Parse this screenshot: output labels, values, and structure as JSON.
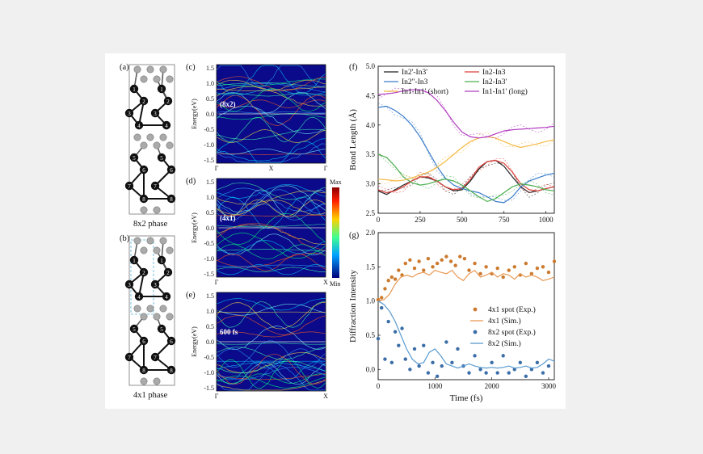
{
  "panels": {
    "a": {
      "letter": "(a)",
      "caption": "8x2 phase"
    },
    "b": {
      "letter": "(b)",
      "caption": "4x1 phase"
    },
    "c": {
      "letter": "(c)",
      "inlay": "(8x2)"
    },
    "d": {
      "letter": "(d)",
      "inlay": "(4x1)"
    },
    "e": {
      "letter": "(e)",
      "inlay": "600 fs"
    },
    "f": {
      "letter": "(f)"
    },
    "g": {
      "letter": "(g)"
    }
  },
  "atoms": {
    "a": [
      "1",
      "1",
      "2",
      "2",
      "3",
      "3",
      "4",
      "4",
      "5",
      "5",
      "6",
      "6",
      "7",
      "7",
      "8",
      "8"
    ],
    "b": [
      "1",
      "1",
      "2",
      "2",
      "3",
      "3",
      "4",
      "4",
      "5",
      "5",
      "6",
      "6",
      "7",
      "7",
      "8",
      "8"
    ]
  },
  "colorbar": {
    "max_label": "Max",
    "min_label": "Min"
  },
  "band_axes": {
    "ylabel": "Energy(eV)",
    "yticks": [
      "1.5",
      "1.0",
      "0.5",
      "0.0",
      "-0.5",
      "-1.0",
      "-1.5"
    ],
    "kpoints_c": [
      "Γ",
      "X",
      "Γ"
    ],
    "kpoints_d": [
      "Γ",
      "X"
    ],
    "kpoints_e": [
      "Γ",
      "X"
    ]
  },
  "chart_data": [
    {
      "type": "line",
      "panel": "(f)",
      "xlabel": "",
      "ylabel": "Bond Length (Å)",
      "xlim": [
        0,
        1050
      ],
      "ylim": [
        2.5,
        5.0
      ],
      "xticks": [
        0,
        250,
        500,
        750,
        1000
      ],
      "yticks": [
        2.5,
        3.0,
        3.5,
        4.0,
        4.5,
        5.0
      ],
      "legend": "top",
      "x": [
        0,
        50,
        100,
        150,
        200,
        250,
        300,
        350,
        400,
        450,
        500,
        550,
        600,
        650,
        700,
        750,
        800,
        850,
        900,
        950,
        1000,
        1050
      ],
      "series": [
        {
          "name": "In2'-In3'",
          "color": "#222222",
          "values": [
            2.88,
            2.82,
            2.9,
            2.98,
            3.05,
            3.12,
            3.1,
            3.05,
            2.95,
            2.88,
            2.9,
            3.05,
            3.25,
            3.38,
            3.4,
            3.3,
            3.12,
            2.95,
            2.85,
            2.88,
            2.92,
            2.95
          ]
        },
        {
          "name": "In2-In3",
          "color": "#e0403a",
          "values": [
            2.9,
            2.85,
            2.88,
            2.95,
            3.05,
            3.12,
            3.12,
            3.05,
            2.95,
            2.9,
            2.92,
            3.08,
            3.28,
            3.38,
            3.4,
            3.35,
            3.2,
            3.0,
            2.9,
            2.88,
            2.92,
            2.95
          ]
        },
        {
          "name": "In2\"-In3",
          "color": "#3a7cc9",
          "values": [
            4.3,
            4.32,
            4.25,
            4.15,
            4.0,
            3.8,
            3.55,
            3.3,
            3.1,
            2.98,
            2.92,
            2.88,
            2.85,
            2.78,
            2.7,
            2.68,
            2.78,
            2.95,
            3.05,
            3.1,
            3.15,
            3.18
          ]
        },
        {
          "name": "In2-In3'",
          "color": "#4caf50",
          "values": [
            3.5,
            3.45,
            3.3,
            3.12,
            3.02,
            2.98,
            3.0,
            3.05,
            3.08,
            3.05,
            2.98,
            2.88,
            2.78,
            2.7,
            2.75,
            2.85,
            2.95,
            3.0,
            2.98,
            2.95,
            2.9,
            2.88
          ]
        },
        {
          "name": "In1-In1' (short)",
          "color": "#f5b942",
          "values": [
            3.08,
            3.07,
            3.05,
            3.06,
            3.1,
            3.15,
            3.2,
            3.28,
            3.38,
            3.5,
            3.62,
            3.72,
            3.78,
            3.8,
            3.78,
            3.72,
            3.66,
            3.62,
            3.65,
            3.68,
            3.72,
            3.75
          ]
        },
        {
          "name": "In1-In1' (long)",
          "color": "#b23cc0",
          "values": [
            4.52,
            4.53,
            4.55,
            4.58,
            4.6,
            4.6,
            4.55,
            4.42,
            4.25,
            4.05,
            3.88,
            3.8,
            3.78,
            3.8,
            3.85,
            3.9,
            3.92,
            3.93,
            3.94,
            3.95,
            3.96,
            3.98
          ]
        }
      ]
    },
    {
      "type": "scatter",
      "panel": "(g)",
      "xlabel": "Time (fs)",
      "ylabel": "Diffraction Intensity",
      "xlim": [
        0,
        3100
      ],
      "ylim": [
        -0.15,
        2.0
      ],
      "xticks": [
        0,
        1000,
        2000,
        3000
      ],
      "yticks": [
        0.0,
        0.5,
        1.0,
        1.5,
        2.0
      ],
      "legend": "right",
      "series": [
        {
          "name": "4x1 spot (Exp.)",
          "kind": "points",
          "color": "#cc7a2e",
          "x": [
            0,
            60,
            120,
            180,
            240,
            300,
            360,
            420,
            480,
            560,
            640,
            720,
            800,
            880,
            960,
            1040,
            1120,
            1200,
            1280,
            1360,
            1440,
            1520,
            1600,
            1700,
            1800,
            1900,
            2000,
            2100,
            2200,
            2300,
            2400,
            2500,
            2600,
            2700,
            2800,
            2900,
            3000,
            3100
          ],
          "y": [
            1.02,
            1.05,
            1.18,
            1.3,
            1.35,
            1.32,
            1.45,
            1.38,
            1.55,
            1.6,
            1.48,
            1.58,
            1.45,
            1.62,
            1.5,
            1.55,
            1.6,
            1.65,
            1.58,
            1.52,
            1.65,
            1.62,
            1.45,
            1.55,
            1.4,
            1.5,
            1.4,
            1.48,
            1.35,
            1.45,
            1.5,
            1.38,
            1.55,
            1.4,
            1.48,
            1.5,
            1.42,
            1.58
          ]
        },
        {
          "name": "4x1 (Sim.)",
          "kind": "line",
          "color": "#e89a55",
          "x": [
            0,
            100,
            200,
            300,
            400,
            500,
            600,
            700,
            800,
            900,
            1000,
            1100,
            1200,
            1300,
            1400,
            1500,
            1600,
            1700,
            1800,
            1900,
            2000,
            2100,
            2200,
            2300,
            2400,
            2500,
            2600,
            2700,
            2800,
            2900,
            3000,
            3100
          ],
          "y": [
            1.0,
            1.02,
            1.1,
            1.25,
            1.35,
            1.38,
            1.35,
            1.4,
            1.42,
            1.38,
            1.45,
            1.42,
            1.4,
            1.45,
            1.35,
            1.3,
            1.4,
            1.45,
            1.35,
            1.38,
            1.42,
            1.35,
            1.4,
            1.38,
            1.32,
            1.4,
            1.35,
            1.38,
            1.35,
            1.3,
            1.32,
            1.35
          ]
        },
        {
          "name": "8x2 spot (Exp.)",
          "kind": "points",
          "color": "#3b6ea8",
          "x": [
            0,
            60,
            120,
            180,
            240,
            300,
            360,
            420,
            480,
            560,
            640,
            720,
            800,
            880,
            960,
            1040,
            1120,
            1200,
            1300,
            1400,
            1500,
            1600,
            1700,
            1800,
            1900,
            2000,
            2100,
            2200,
            2300,
            2400,
            2500,
            2600,
            2700,
            2800,
            2900,
            3000
          ],
          "y": [
            0.45,
            0.9,
            0.15,
            0.7,
            0.1,
            0.55,
            0.35,
            0.6,
            0.15,
            0.0,
            0.3,
            0.05,
            0.35,
            -0.05,
            0.1,
            -0.1,
            0.05,
            0.4,
            0.1,
            0.3,
            0.05,
            -0.05,
            0.2,
            0.0,
            -0.05,
            0.1,
            -0.05,
            0.2,
            -0.05,
            0.0,
            0.1,
            -0.1,
            0.0,
            0.1,
            -0.05,
            0.05
          ]
        },
        {
          "name": "8x2 (Sim.)",
          "kind": "line",
          "color": "#5a9bd0",
          "x": [
            0,
            100,
            200,
            300,
            400,
            500,
            600,
            700,
            800,
            900,
            1000,
            1100,
            1200,
            1300,
            1400,
            1500,
            1600,
            1700,
            1800,
            1900,
            2000,
            2100,
            2200,
            2300,
            2400,
            2500,
            2600,
            2700,
            2800,
            2900,
            3000,
            3100
          ],
          "y": [
            1.0,
            0.95,
            0.85,
            0.7,
            0.5,
            0.3,
            0.15,
            0.08,
            0.1,
            0.25,
            0.3,
            0.2,
            0.08,
            0.05,
            0.02,
            0.05,
            0.08,
            0.05,
            0.03,
            0.02,
            0.03,
            0.02,
            0.03,
            0.05,
            0.02,
            0.03,
            0.05,
            0.02,
            0.03,
            0.08,
            0.15,
            0.12
          ]
        }
      ]
    }
  ]
}
